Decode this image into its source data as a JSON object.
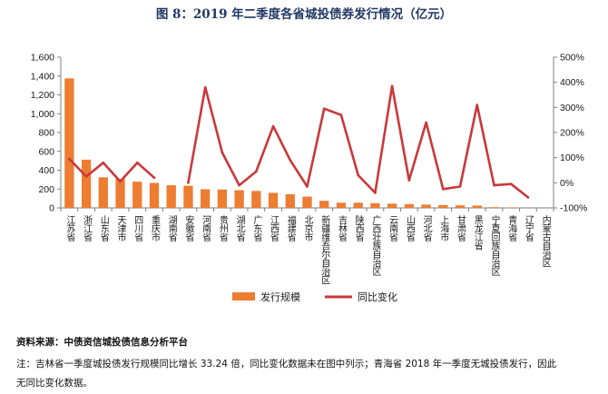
{
  "chart_data": {
    "type": "bar",
    "title": "图 8：2019 年二季度各省城投债券发行情况（亿元）",
    "categories": [
      "江苏省",
      "浙江省",
      "山东省",
      "天津市",
      "四川省",
      "重庆市",
      "湖南省",
      "安徽省",
      "河南省",
      "贵州省",
      "湖北省",
      "广东省",
      "江西省",
      "福建省",
      "北京市",
      "新疆维吾尔自治区",
      "吉林省",
      "陕西省",
      "广西壮族自治区",
      "云南省",
      "山西省",
      "河北省",
      "上海市",
      "甘肃省",
      "黑龙江省",
      "宁夏回族自治区",
      "青海省",
      "辽宁省",
      "内蒙古自治区"
    ],
    "series": [
      {
        "name": "发行规模",
        "type": "bar",
        "axis": "left",
        "color": "#ed7d31",
        "values": [
          1375,
          512,
          325,
          308,
          278,
          265,
          240,
          235,
          198,
          195,
          188,
          180,
          160,
          145,
          120,
          75,
          55,
          55,
          50,
          45,
          40,
          35,
          30,
          27,
          25,
          8,
          5,
          0,
          0
        ]
      },
      {
        "name": "同比变化",
        "type": "line",
        "axis": "right",
        "color": "#c9383a",
        "values": [
          95,
          25,
          80,
          5,
          80,
          20,
          null,
          0,
          380,
          120,
          -10,
          45,
          225,
          90,
          -15,
          295,
          270,
          30,
          -40,
          385,
          10,
          240,
          -25,
          -15,
          310,
          -10,
          -5,
          -58,
          null
        ]
      }
    ],
    "ylim_left": [
      0,
      1600
    ],
    "yticks_left": [
      "0",
      "200",
      "400",
      "600",
      "800",
      "1,000",
      "1,200",
      "1,400",
      "1,600"
    ],
    "ylim_right": [
      -100,
      500
    ],
    "yticks_right": [
      "-100%",
      "0%",
      "100%",
      "200%",
      "300%",
      "400%",
      "500%"
    ],
    "legend_position": "bottom",
    "grid": false
  },
  "notes": {
    "source": "资料来源：中债资信城投债信息分析平台",
    "footnote_line1": "注：吉林省一季度城投债发行规模同比增长 33.24 倍，同比变化数据未在图中列示；青海省 2018 年一季度无城投债发行，因此",
    "footnote_line2": "无同比变化数据。"
  }
}
